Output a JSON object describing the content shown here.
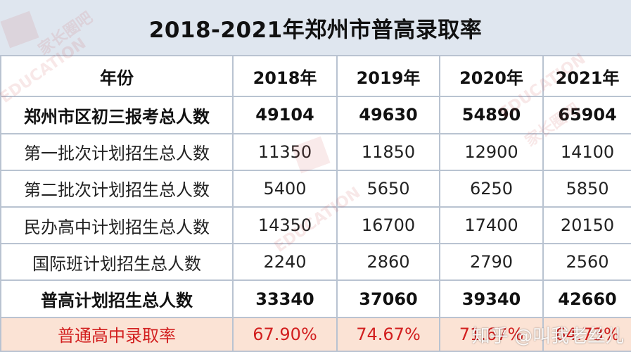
{
  "title": "2018-2021年郑州市普高录取率",
  "header": {
    "label": "年份",
    "years": [
      "2018年",
      "2019年",
      "2020年",
      "2021年"
    ]
  },
  "rows": [
    {
      "label": "郑州市区初三报考总人数",
      "values": [
        "49104",
        "49630",
        "54890",
        "65904"
      ],
      "style": "bold"
    },
    {
      "label": "第一批次计划招生总人数",
      "values": [
        "11350",
        "11850",
        "12900",
        "14100"
      ],
      "style": "normal"
    },
    {
      "label": "第二批次计划招生总人数",
      "values": [
        "5400",
        "5650",
        "6250",
        "5850"
      ],
      "style": "normal"
    },
    {
      "label": "民办高中计划招生总人数",
      "values": [
        "14350",
        "16700",
        "17400",
        "20150"
      ],
      "style": "normal"
    },
    {
      "label": "国际班计划招生总人数",
      "values": [
        "2240",
        "2860",
        "2790",
        "2560"
      ],
      "style": "normal"
    },
    {
      "label": "普高计划招生总人数",
      "values": [
        "33340",
        "37060",
        "39340",
        "42660"
      ],
      "style": "bold"
    },
    {
      "label": "普通高中录取率",
      "values": [
        "67.90%",
        "74.67%",
        "71.67%",
        "64.73%"
      ],
      "style": "rate"
    }
  ],
  "watermark": {
    "brand": "家长圈吧",
    "text": "EDUCATION"
  },
  "credit": "知乎 @叫我老丝儿",
  "colors": {
    "title_bg": "#dfe6ef",
    "border": "#b9c3d1",
    "rate_bg": "#fbe3d5",
    "rate_text": "#d21f1f"
  }
}
